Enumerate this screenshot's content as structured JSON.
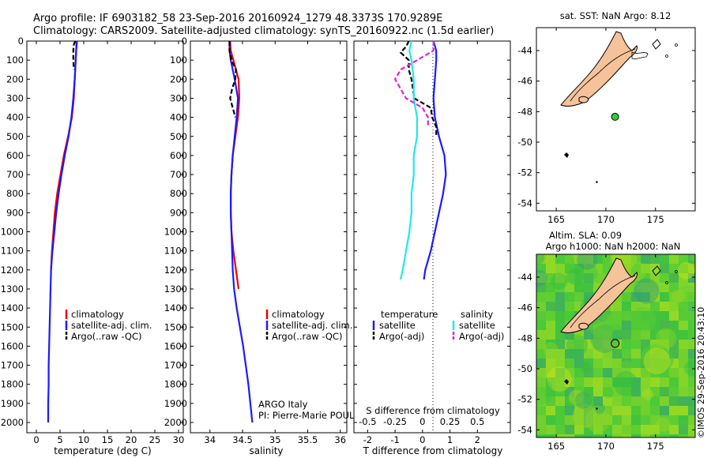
{
  "header": {
    "line1": "Argo profile: IF 6903182_58 23-Sep-2016 20160924_1279 48.3373S 170.9289E",
    "line2": "Climatology: CARS2009. Satellite-adjusted climatology: synTS_20160922.nc (1.5d earlier)"
  },
  "colors": {
    "climatology": "#ee0000",
    "satellite": "#1a1aff",
    "argo_raw": "#000000",
    "sal_satellite": "#22e8e8",
    "sal_argo": "#dd22dd",
    "land": "#f5c29a",
    "ocean_map": "#ffffff"
  },
  "legend_temp": {
    "items": [
      "climatology",
      "satellite-adj. clim.",
      "Argo(..raw -QC)"
    ]
  },
  "legend_sal": {
    "items": [
      "climatology",
      "satellite-adj. clim.",
      "Argo(..raw -QC)"
    ]
  },
  "legend_diff": {
    "col1_header": "temperature",
    "col2_header": "salinity",
    "items": [
      "satellite",
      "Argo(-adj)",
      "satellite",
      "Argo(-adj)"
    ]
  },
  "attribution": {
    "line1": "ARGO Italy",
    "line2": "PI: Pierre-Marie POULAIN"
  },
  "map_top": {
    "title": "sat. SST: NaN Argo: 8.12"
  },
  "map_bottom": {
    "title1": "Altim. SLA: 0.09",
    "title2": "Argo h1000: NaN h2000: NaN",
    "credit": "©IMOS 29-Sep-2016 20:43:10"
  },
  "chart_data": [
    {
      "id": "temperature",
      "type": "line",
      "xlabel": "temperature (deg C)",
      "ylabel": "",
      "xlim": [
        -2,
        31
      ],
      "ylim": [
        2100,
        0
      ],
      "xticks": [
        "0",
        "5",
        "10",
        "15",
        "20",
        "25",
        "30"
      ],
      "yticks": [
        "0",
        "100",
        "200",
        "300",
        "400",
        "500",
        "600",
        "700",
        "800",
        "900",
        "1000",
        "1100",
        "1200",
        "1300",
        "1400",
        "1500",
        "1600",
        "1700",
        "1800",
        "1900",
        "2000"
      ],
      "series": [
        {
          "name": "climatology",
          "style": "solid",
          "depth": [
            0,
            50,
            100,
            200,
            300,
            400,
            500,
            600,
            700,
            800,
            900,
            1000,
            1100,
            1200
          ],
          "values": [
            8.6,
            8.4,
            8.3,
            8.1,
            7.9,
            7.5,
            6.7,
            5.8,
            5.1,
            4.4,
            3.9,
            3.6,
            3.3,
            3.1
          ]
        },
        {
          "name": "satellite-adj. clim.",
          "style": "solid",
          "depth": [
            0,
            50,
            100,
            200,
            300,
            400,
            500,
            600,
            700,
            800,
            900,
            1000,
            1100,
            1200,
            1300,
            1400,
            1500,
            1600,
            1700,
            1800,
            1900,
            2000
          ],
          "values": [
            8.5,
            8.4,
            8.3,
            8.1,
            7.8,
            7.4,
            6.8,
            6.0,
            5.3,
            4.7,
            4.2,
            3.8,
            3.4,
            3.1,
            3.0,
            2.9,
            2.8,
            2.7,
            2.6,
            2.6,
            2.5,
            2.5
          ]
        },
        {
          "name": "Argo(..raw -QC)",
          "style": "dashed",
          "depth": [
            0,
            20,
            50,
            100,
            150
          ],
          "values": [
            8.2,
            7.9,
            7.8,
            7.8,
            7.9
          ]
        }
      ]
    },
    {
      "id": "salinity",
      "type": "line",
      "xlabel": "salinity",
      "ylabel": "",
      "xlim": [
        33.7,
        36.1
      ],
      "ylim": [
        2100,
        0
      ],
      "xticks": [
        "34",
        "34.5",
        "35",
        "35.5",
        "36"
      ],
      "series": [
        {
          "name": "climatology",
          "style": "solid",
          "depth": [
            0,
            50,
            100,
            200,
            300,
            400,
            500,
            600,
            700,
            800,
            900,
            1000,
            1100,
            1200,
            1300
          ],
          "values": [
            34.31,
            34.32,
            34.36,
            34.44,
            34.45,
            34.43,
            34.39,
            34.35,
            34.33,
            34.32,
            34.32,
            34.33,
            34.36,
            34.4,
            34.44
          ]
        },
        {
          "name": "satellite-adj. clim.",
          "style": "solid",
          "depth": [
            0,
            50,
            100,
            200,
            300,
            400,
            500,
            600,
            700,
            800,
            900,
            1000,
            1100,
            1200,
            1300,
            1400,
            1500,
            1600,
            1700,
            1800,
            1900,
            2000
          ],
          "values": [
            34.3,
            34.3,
            34.32,
            34.38,
            34.43,
            34.41,
            34.38,
            34.35,
            34.33,
            34.32,
            34.32,
            34.33,
            34.34,
            34.35,
            34.37,
            34.41,
            34.46,
            34.51,
            34.55,
            34.59,
            34.62,
            34.65
          ]
        },
        {
          "name": "Argo(..raw -QC)",
          "style": "dashed",
          "depth": [
            0,
            50,
            100,
            150,
            200,
            250,
            300,
            350,
            400
          ],
          "values": [
            34.3,
            34.3,
            34.33,
            34.4,
            34.39,
            34.34,
            34.31,
            34.35,
            34.39
          ]
        }
      ]
    },
    {
      "id": "difference",
      "type": "line",
      "xlabel": "T difference from climatology",
      "xlabel2": "S difference from climatology",
      "xlim": [
        -2.5,
        3.2
      ],
      "ylim": [
        2100,
        0
      ],
      "xticks": [
        "-2",
        "-1",
        "0",
        "1",
        "2"
      ],
      "xticks2": [
        "-0.5",
        "-0.25",
        "0",
        "0.25",
        "0.5"
      ],
      "series": [
        {
          "name": "temperature satellite",
          "style": "solid",
          "depth": [
            0,
            50,
            100,
            200,
            300,
            400,
            500,
            600,
            700,
            800,
            900,
            1000,
            1100,
            1200,
            1250
          ],
          "values": [
            0.4,
            0.5,
            0.5,
            0.45,
            0.4,
            0.45,
            0.6,
            0.8,
            0.85,
            0.75,
            0.6,
            0.45,
            0.3,
            0.1,
            0.05
          ]
        },
        {
          "name": "temperature Argo(-adj)",
          "style": "dashed",
          "depth": [
            0,
            30,
            60,
            100,
            150,
            200,
            300,
            350,
            400,
            450,
            500
          ],
          "values": [
            -0.5,
            -0.6,
            -0.8,
            -0.5,
            -0.5,
            -0.4,
            -0.3,
            0.3,
            0.35,
            0.5,
            0.5
          ]
        },
        {
          "name": "salinity satellite",
          "style": "solid",
          "depth": [
            0,
            50,
            100,
            200,
            300,
            400,
            500,
            600,
            700,
            800,
            900,
            1000,
            1100,
            1200,
            1250
          ],
          "values": [
            -0.1,
            -0.12,
            -0.1,
            -0.08,
            -0.08,
            -0.05,
            -0.05,
            -0.08,
            -0.08,
            -0.1,
            -0.1,
            -0.12,
            -0.15,
            -0.18,
            -0.2
          ]
        },
        {
          "name": "salinity Argo(-adj)",
          "style": "dashed",
          "depth": [
            0,
            50,
            100,
            150,
            200,
            250,
            300,
            350,
            400,
            450
          ],
          "values": [
            0.1,
            0.1,
            -0.05,
            -0.2,
            -0.25,
            -0.2,
            -0.15,
            0,
            0.05,
            0.05
          ]
        }
      ]
    },
    {
      "id": "map-sst",
      "type": "scatter",
      "title": "sat. SST: NaN Argo: 8.12",
      "xlim": [
        163,
        179
      ],
      "ylim": [
        -54.5,
        -42.5
      ],
      "xticks": [
        "165",
        "170",
        "175"
      ],
      "yticks": [
        "-44",
        "-46",
        "-48",
        "-50",
        "-52",
        "-54"
      ],
      "points": [
        {
          "name": "argo float",
          "lon": 170.93,
          "lat": -48.34
        }
      ]
    },
    {
      "id": "map-sla",
      "type": "heatmap",
      "title": "Altim. SLA: 0.09",
      "xlim": [
        163,
        179
      ],
      "ylim": [
        -54.5,
        -42.5
      ],
      "xticks": [
        "165",
        "170",
        "175"
      ],
      "yticks": [
        "-44",
        "-46",
        "-48",
        "-50",
        "-52",
        "-54"
      ],
      "points": [
        {
          "name": "argo float",
          "lon": 170.93,
          "lat": -48.34
        }
      ]
    }
  ]
}
